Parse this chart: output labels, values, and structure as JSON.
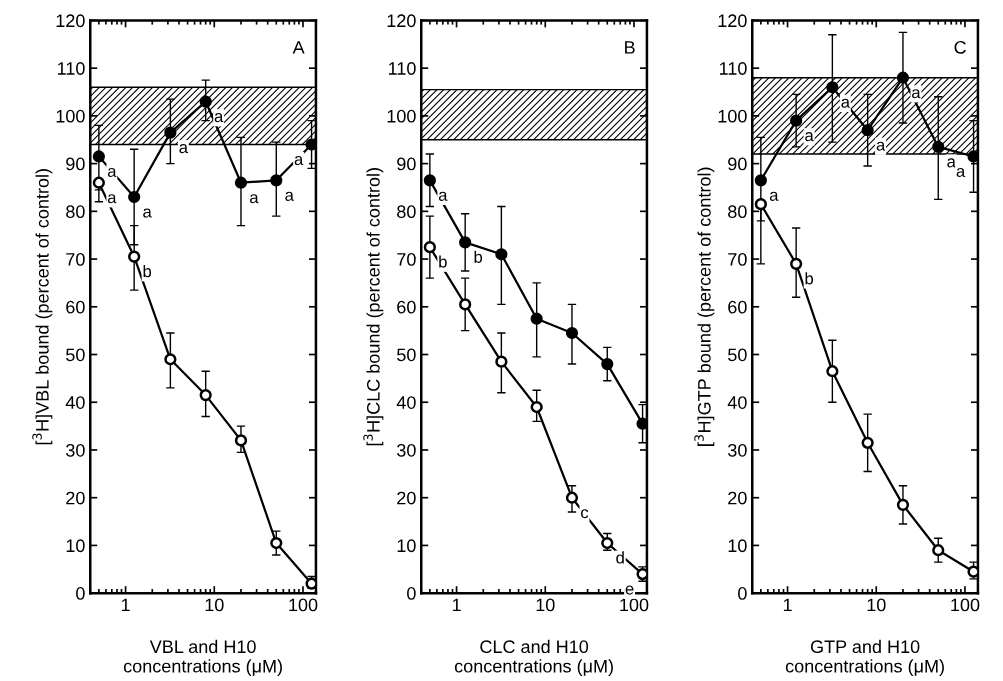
{
  "chart_data": [
    {
      "type": "line",
      "xlabel": "VBL and H10\nconcentrations (μM)",
      "ylabel": "[$^{3}$H]VBL bound (percent of control)",
      "log": "x",
      "marker": "circle",
      "grid": false,
      "xlim": [
        0.4,
        140
      ],
      "xticks": [
        1,
        10,
        100
      ],
      "ylim": [
        0,
        120
      ],
      "yticks": [
        0,
        10,
        20,
        30,
        40,
        50,
        60,
        70,
        80,
        90,
        100,
        110,
        120
      ],
      "x": [
        0.5,
        1.25,
        3.2,
        8,
        20,
        50,
        125
      ],
      "series": [
        {
          "color": "#000000",
          "values": [
            91.5,
            83,
            96.5,
            103,
            86,
            86.5,
            94
          ],
          "errors": [
            [
              84.5,
              98
            ],
            [
              73,
              93
            ],
            [
              90,
              103.5
            ],
            [
              99,
              107.5
            ],
            [
              77,
              95.5
            ],
            [
              79,
              94.5
            ],
            [
              89,
              99
            ]
          ]
        },
        {
          "color": "#000000",
          "values": [
            86,
            70.5,
            49,
            41.5,
            32,
            10.5,
            2
          ],
          "errors": [
            [
              82,
              86
            ],
            [
              63.5,
              77
            ],
            [
              43,
              54.5
            ],
            [
              37,
              46.5
            ],
            [
              29.5,
              35
            ],
            [
              8,
              13
            ],
            [
              1,
              3.5
            ]
          ]
        }
      ],
      "bands": [
        {
          "axis": "y",
          "from": 94,
          "to": 106,
          "color": "#000000"
        }
      ],
      "annotations": [
        "A",
        {
          "text": "a",
          "x": 0.5,
          "y": 91.5
        },
        {
          "text": "a",
          "x": 1.25,
          "y": 83
        },
        {
          "text": "a",
          "x": 3.2,
          "y": 96.5
        },
        {
          "text": "a",
          "x": 8,
          "y": 103
        },
        {
          "text": "a",
          "x": 20,
          "y": 86
        },
        {
          "text": "a",
          "x": 50,
          "y": 86.5
        },
        {
          "text": "a",
          "x": 125,
          "y": 94
        },
        {
          "text": "a",
          "x": 0.5,
          "y": 86
        },
        {
          "text": "b",
          "x": 1.25,
          "y": 70.5
        }
      ]
    },
    {
      "type": "line",
      "xlabel": "CLC and H10\nconcentrations (μM)",
      "ylabel": "[$^{3}$H]CLC bound (percent of control)",
      "log": "x",
      "marker": "circle",
      "grid": false,
      "xlim": [
        0.4,
        140
      ],
      "xticks": [
        1,
        10,
        100
      ],
      "ylim": [
        0,
        120
      ],
      "yticks": [
        0,
        10,
        20,
        30,
        40,
        50,
        60,
        70,
        80,
        90,
        100,
        110,
        120
      ],
      "x": [
        0.5,
        1.25,
        3.2,
        8,
        20,
        50,
        125
      ],
      "series": [
        {
          "color": "#000000",
          "values": [
            86.5,
            73.5,
            71,
            57.5,
            54.5,
            48,
            35.5
          ],
          "errors": [
            [
              81,
              92
            ],
            [
              67.5,
              79.5
            ],
            [
              60.5,
              81
            ],
            [
              49.5,
              65
            ],
            [
              48,
              60.5
            ],
            [
              44.5,
              51.5
            ],
            [
              31.5,
              39.5
            ]
          ]
        },
        {
          "color": "#000000",
          "values": [
            72.5,
            60.5,
            48.5,
            39,
            20,
            10.5,
            4
          ],
          "errors": [
            [
              66,
              79
            ],
            [
              55,
              66
            ],
            [
              42,
              54.5
            ],
            [
              36,
              42.5
            ],
            [
              17,
              22.5
            ],
            [
              9,
              12.5
            ],
            [
              2.5,
              5.5
            ]
          ]
        }
      ],
      "bands": [
        {
          "axis": "y",
          "from": 95,
          "to": 105.5,
          "color": "#000000"
        }
      ],
      "annotations": [
        "B",
        {
          "text": "a",
          "x": 0.5,
          "y": 86.5
        },
        {
          "text": "b",
          "x": 1.25,
          "y": 73.5
        },
        {
          "text": "b",
          "x": 0.5,
          "y": 72.5
        },
        {
          "text": "c",
          "x": 20,
          "y": 20
        },
        {
          "text": "d",
          "x": 50,
          "y": 10.5
        },
        {
          "text": "e",
          "x": 125,
          "y": 4
        }
      ]
    },
    {
      "type": "line",
      "xlabel": "GTP and H10\nconcentrations (μM)",
      "ylabel": "[$^{3}$H]GTP bound (percent of control)",
      "log": "x",
      "marker": "circle",
      "grid": false,
      "xlim": [
        0.4,
        140
      ],
      "xticks": [
        1,
        10,
        100
      ],
      "ylim": [
        0,
        120
      ],
      "yticks": [
        0,
        10,
        20,
        30,
        40,
        50,
        60,
        70,
        80,
        90,
        100,
        110,
        120
      ],
      "x": [
        0.5,
        1.25,
        3.2,
        8,
        20,
        50,
        125
      ],
      "series": [
        {
          "color": "#000000",
          "values": [
            86.5,
            99,
            106,
            97,
            108,
            93.5,
            91.5
          ],
          "errors": [
            [
              78,
              95.5
            ],
            [
              93.5,
              104.5
            ],
            [
              94.5,
              117
            ],
            [
              89.5,
              104.5
            ],
            [
              98.5,
              117.5
            ],
            [
              82.5,
              104
            ],
            [
              84,
              99
            ]
          ]
        },
        {
          "color": "#000000",
          "values": [
            81.5,
            69,
            46.5,
            31.5,
            18.5,
            9,
            4.5
          ],
          "errors": [
            [
              69,
              81.5
            ],
            [
              62,
              76.5
            ],
            [
              40,
              53
            ],
            [
              25.5,
              37.5
            ],
            [
              14.5,
              22.5
            ],
            [
              6.5,
              11.5
            ],
            [
              3,
              6.5
            ]
          ]
        }
      ],
      "bands": [
        {
          "axis": "y",
          "from": 92,
          "to": 108,
          "color": "#000000"
        }
      ],
      "annotations": [
        "C",
        {
          "text": "a",
          "x": 0.5,
          "y": 86.5
        },
        {
          "text": "a",
          "x": 1.25,
          "y": 99
        },
        {
          "text": "a",
          "x": 3.2,
          "y": 106
        },
        {
          "text": "a",
          "x": 8,
          "y": 97
        },
        {
          "text": "a",
          "x": 20,
          "y": 108
        },
        {
          "text": "a",
          "x": 50,
          "y": 93.5
        },
        {
          "text": "a",
          "x": 125,
          "y": 91.5
        },
        {
          "text": "b",
          "x": 1.25,
          "y": 69
        }
      ]
    }
  ]
}
